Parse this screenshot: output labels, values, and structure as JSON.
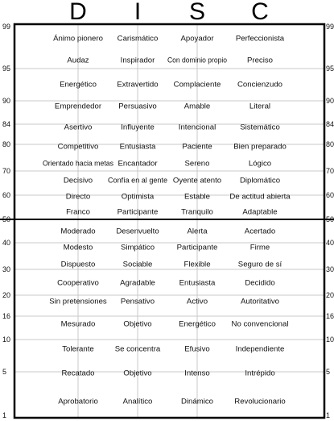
{
  "chart_data": {
    "type": "table",
    "columns": [
      "D",
      "I",
      "S",
      "C"
    ],
    "scale_labels": [
      "99",
      "95",
      "90",
      "84",
      "80",
      "70",
      "60",
      "50",
      "40",
      "30",
      "20",
      "16",
      "10",
      "5",
      "1"
    ],
    "rows": [
      [
        "Ánimo pionero",
        "Carismático",
        "Apoyador",
        "Perfeccionista"
      ],
      [
        "Audaz",
        "Inspirador",
        "Con dominio propio",
        "Preciso"
      ],
      [
        "Energético",
        "Extravertido",
        "Complaciente",
        "Concienzudo"
      ],
      [
        "Emprendedor",
        "Persuasivo",
        "Amable",
        "Literal"
      ],
      [
        "Asertivo",
        "Influyente",
        "Intencional",
        "Sistemático"
      ],
      [
        "Competitivo",
        "Entusiasta",
        "Paciente",
        "Bien preparado"
      ],
      [
        "Orientado hacia metas",
        "Encantador",
        "Sereno",
        "Lógico"
      ],
      [
        "Decisivo",
        "Confía en al gente",
        "Oyente atento",
        "Diplomático"
      ],
      [
        "Directo",
        "Optimista",
        "Estable",
        "De actitud abierta"
      ],
      [
        "Franco",
        "Participante",
        "Tranquilo",
        "Adaptable"
      ],
      [
        "Moderado",
        "Desenvuelto",
        "Alerta",
        "Acertado"
      ],
      [
        "Modesto",
        "Simpático",
        "Participante",
        "Firme"
      ],
      [
        "Dispuesto",
        "Sociable",
        "Flexible",
        "Seguro de sí"
      ],
      [
        "Cooperativo",
        "Agradable",
        "Entusiasta",
        "Decidido"
      ],
      [
        "Sin pretensiones",
        "Pensativo",
        "Activo",
        "Autoritativo"
      ],
      [
        "Mesurado",
        "Objetivo",
        "Energético",
        "No convencional"
      ],
      [
        "Tolerante",
        "Se concentra",
        "Efusivo",
        "Independiente"
      ],
      [
        "Recatado",
        "Objetivo",
        "Intenso",
        "Intrépido"
      ],
      [
        "Aprobatorio",
        "Analítico",
        "Dinámico",
        "Revolucionario"
      ]
    ],
    "colors": {
      "border": "#000000",
      "midline": "#000000",
      "grid": "#c8c8c8",
      "text": "#111111"
    }
  }
}
